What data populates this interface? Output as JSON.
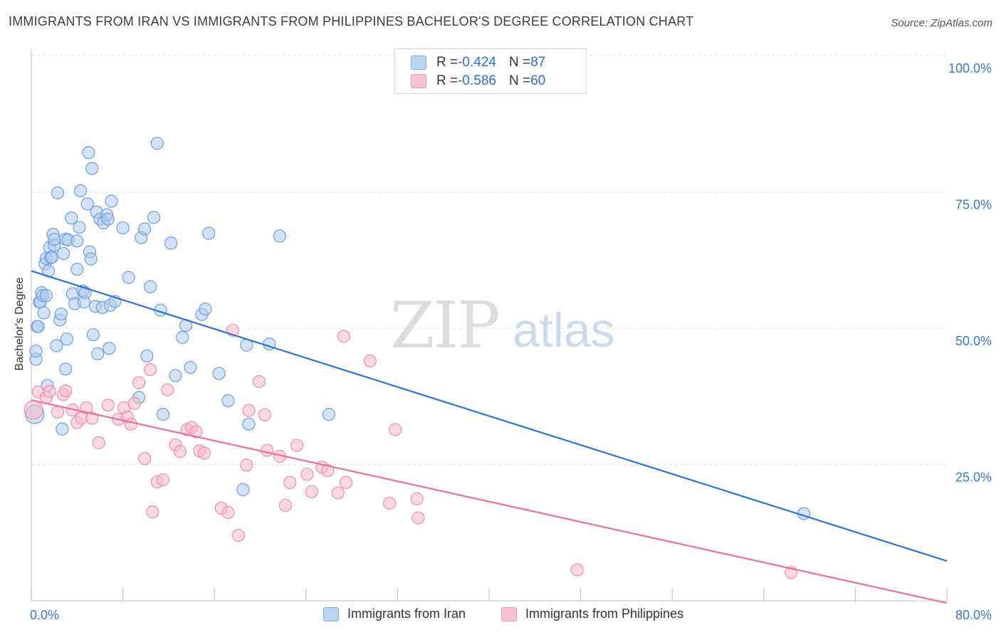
{
  "title": "IMMIGRANTS FROM IRAN VS IMMIGRANTS FROM PHILIPPINES BACHELOR'S DEGREE CORRELATION CHART",
  "source": "Source: ZipAtlas.com",
  "watermark": {
    "zip": "ZIP",
    "atlas": "atlas"
  },
  "legend": {
    "rows": [
      {
        "r_label": "R = ",
        "r_value": "-0.424",
        "n_label": "N = ",
        "n_value": "87",
        "color": "#b9d4f4"
      },
      {
        "r_label": "R = ",
        "r_value": "-0.586",
        "n_label": "N = ",
        "n_value": "60",
        "color": "#f8c2d3"
      }
    ]
  },
  "bottom_legend": [
    {
      "label": "Immigrants from Iran",
      "color": "#b9d4f4"
    },
    {
      "label": "Immigrants from Philippines",
      "color": "#f8c2d3"
    }
  ],
  "colors": {
    "iran_fill": "#aecbf0",
    "iran_stroke": "#6f9fdd",
    "iran_line": "#2e73d1",
    "phil_fill": "#f6b8cb",
    "phil_stroke": "#ee8fae",
    "phil_line": "#e8709c",
    "tick_label": "#3a78d4",
    "grid": "#dedede"
  },
  "chart_data": {
    "type": "scatter",
    "title": "IMMIGRANTS FROM IRAN VS IMMIGRANTS FROM PHILIPPINES BACHELOR'S DEGREE CORRELATION CHART",
    "xlabel": "",
    "ylabel": "Bachelor's Degree",
    "xlim": [
      0,
      80
    ],
    "ylim": [
      0,
      100
    ],
    "x_ticks": [
      "0.0%",
      "80.0%"
    ],
    "y_ticks": [
      {
        "value": 25,
        "label": "25.0%"
      },
      {
        "value": 50,
        "label": "50.0%"
      },
      {
        "value": 75,
        "label": "75.0%"
      },
      {
        "value": 100,
        "label": "100.0%"
      }
    ],
    "grid": true,
    "legend_position": "top-center",
    "series": [
      {
        "name": "Immigrants from Iran",
        "r": -0.424,
        "n": 87,
        "trend": {
          "x": [
            0,
            80
          ],
          "y": [
            60.5,
            7.3
          ]
        },
        "points": [
          [
            0.3,
            34.2
          ],
          [
            0.4,
            44.3
          ],
          [
            0.4,
            45.8
          ],
          [
            0.5,
            50.3
          ],
          [
            0.6,
            50.3
          ],
          [
            0.7,
            54.8
          ],
          [
            0.8,
            54.8
          ],
          [
            0.9,
            56.5
          ],
          [
            1.0,
            56.0
          ],
          [
            1.1,
            52.8
          ],
          [
            1.2,
            61.8
          ],
          [
            1.3,
            62.8
          ],
          [
            1.3,
            56.0
          ],
          [
            1.4,
            39.5
          ],
          [
            1.5,
            60.5
          ],
          [
            1.6,
            64.8
          ],
          [
            1.7,
            63.0
          ],
          [
            1.8,
            63.0
          ],
          [
            1.9,
            67.2
          ],
          [
            2.0,
            65.2
          ],
          [
            2.0,
            66.3
          ],
          [
            2.2,
            46.8
          ],
          [
            2.3,
            74.8
          ],
          [
            2.5,
            51.5
          ],
          [
            2.6,
            52.6
          ],
          [
            2.7,
            31.5
          ],
          [
            2.8,
            63.7
          ],
          [
            3.0,
            66.3
          ],
          [
            3.0,
            42.5
          ],
          [
            3.1,
            48.0
          ],
          [
            3.2,
            66.2
          ],
          [
            3.5,
            70.2
          ],
          [
            3.6,
            56.3
          ],
          [
            3.8,
            54.5
          ],
          [
            4.0,
            66.0
          ],
          [
            4.0,
            60.8
          ],
          [
            4.2,
            68.5
          ],
          [
            4.3,
            75.2
          ],
          [
            4.5,
            56.8
          ],
          [
            4.6,
            54.8
          ],
          [
            4.7,
            56.5
          ],
          [
            4.9,
            72.8
          ],
          [
            5.0,
            82.2
          ],
          [
            5.1,
            64.0
          ],
          [
            5.2,
            62.7
          ],
          [
            5.3,
            79.3
          ],
          [
            5.4,
            48.8
          ],
          [
            5.6,
            54.0
          ],
          [
            5.7,
            71.3
          ],
          [
            5.8,
            45.3
          ],
          [
            6.0,
            70.0
          ],
          [
            6.2,
            53.8
          ],
          [
            6.3,
            69.3
          ],
          [
            6.6,
            70.8
          ],
          [
            6.7,
            70.0
          ],
          [
            6.8,
            46.3
          ],
          [
            6.9,
            54.2
          ],
          [
            7.0,
            73.3
          ],
          [
            7.3,
            54.9
          ],
          [
            8.5,
            59.3
          ],
          [
            9.4,
            37.3
          ],
          [
            9.6,
            66.6
          ],
          [
            9.9,
            68.2
          ],
          [
            10.1,
            44.9
          ],
          [
            10.4,
            57.6
          ],
          [
            10.7,
            70.3
          ],
          [
            11.0,
            83.9
          ],
          [
            11.3,
            53.3
          ],
          [
            11.5,
            34.2
          ],
          [
            12.2,
            65.6
          ],
          [
            12.6,
            41.3
          ],
          [
            13.2,
            48.3
          ],
          [
            13.5,
            50.5
          ],
          [
            13.9,
            42.8
          ],
          [
            14.9,
            52.5
          ],
          [
            15.2,
            53.5
          ],
          [
            15.5,
            67.4
          ],
          [
            16.4,
            41.7
          ],
          [
            17.2,
            36.7
          ],
          [
            18.5,
            20.4
          ],
          [
            18.8,
            46.9
          ],
          [
            19.0,
            32.4
          ],
          [
            20.8,
            47.1
          ],
          [
            21.7,
            66.9
          ],
          [
            26.0,
            34.2
          ],
          [
            67.5,
            16.0
          ],
          [
            8.0,
            68.4
          ]
        ]
      },
      {
        "name": "Immigrants from Philippines",
        "r": -0.586,
        "n": 60,
        "trend": {
          "x": [
            0,
            80
          ],
          "y": [
            36.8,
            -0.4
          ]
        },
        "points": [
          [
            0.2,
            35.0
          ],
          [
            0.6,
            38.3
          ],
          [
            1.3,
            37.3
          ],
          [
            1.6,
            38.4
          ],
          [
            2.3,
            34.6
          ],
          [
            2.8,
            37.8
          ],
          [
            3.0,
            38.5
          ],
          [
            3.6,
            35.0
          ],
          [
            4.0,
            32.7
          ],
          [
            4.4,
            33.5
          ],
          [
            4.8,
            35.4
          ],
          [
            5.3,
            33.5
          ],
          [
            5.9,
            29.0
          ],
          [
            6.7,
            35.9
          ],
          [
            7.6,
            33.3
          ],
          [
            8.1,
            35.4
          ],
          [
            8.4,
            33.7
          ],
          [
            8.7,
            32.4
          ],
          [
            9.0,
            36.2
          ],
          [
            9.4,
            40.0
          ],
          [
            9.9,
            26.1
          ],
          [
            10.4,
            42.4
          ],
          [
            10.6,
            16.3
          ],
          [
            11.0,
            21.8
          ],
          [
            11.5,
            22.2
          ],
          [
            11.9,
            38.7
          ],
          [
            12.6,
            28.6
          ],
          [
            13.0,
            27.4
          ],
          [
            13.6,
            31.4
          ],
          [
            14.0,
            31.8
          ],
          [
            14.4,
            31.0
          ],
          [
            14.7,
            27.5
          ],
          [
            15.1,
            27.1
          ],
          [
            16.6,
            17.0
          ],
          [
            17.2,
            16.2
          ],
          [
            17.6,
            49.6
          ],
          [
            18.1,
            12.0
          ],
          [
            18.8,
            24.9
          ],
          [
            19.0,
            34.9
          ],
          [
            19.9,
            40.2
          ],
          [
            20.4,
            34.1
          ],
          [
            20.6,
            27.6
          ],
          [
            21.7,
            26.5
          ],
          [
            22.2,
            17.5
          ],
          [
            22.6,
            21.7
          ],
          [
            23.2,
            28.5
          ],
          [
            24.1,
            23.2
          ],
          [
            24.5,
            20.0
          ],
          [
            25.4,
            24.5
          ],
          [
            25.9,
            23.9
          ],
          [
            26.8,
            19.8
          ],
          [
            27.5,
            21.7
          ],
          [
            27.3,
            48.5
          ],
          [
            29.6,
            44.0
          ],
          [
            31.3,
            17.9
          ],
          [
            31.8,
            31.4
          ],
          [
            33.7,
            18.7
          ],
          [
            33.8,
            15.2
          ],
          [
            47.7,
            5.7
          ],
          [
            66.4,
            5.2
          ]
        ]
      }
    ]
  }
}
